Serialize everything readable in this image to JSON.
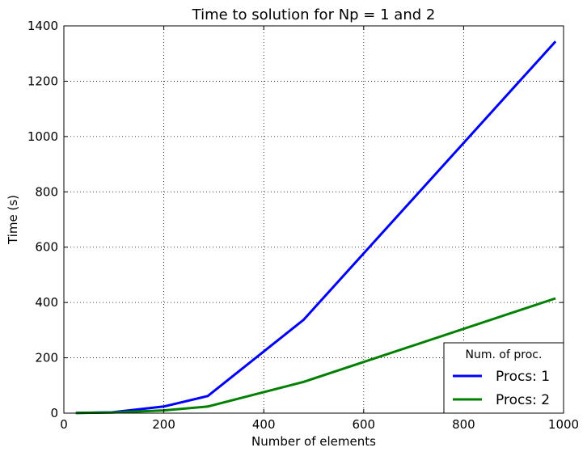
{
  "chart_data": {
    "type": "line",
    "title": "Time to solution for Np =  1 and 2",
    "xlabel": "Number of elements",
    "ylabel": "Time (s)",
    "xlim": [
      0,
      1000
    ],
    "ylim": [
      0,
      1400
    ],
    "xticks": [
      0,
      200,
      400,
      600,
      800,
      1000
    ],
    "yticks": [
      0,
      200,
      400,
      600,
      800,
      1000,
      1200,
      1400
    ],
    "grid": true,
    "legend": {
      "title": "Num. of proc.",
      "placement": "lower-right"
    },
    "series": [
      {
        "name": "Procs: 1",
        "color": "#0000ff",
        "x": [
          24,
          96,
          200,
          288,
          480,
          984
        ],
        "y": [
          1,
          3,
          24,
          62,
          338,
          1344
        ]
      },
      {
        "name": "Procs: 2",
        "color": "#008000",
        "x": [
          24,
          96,
          200,
          288,
          480,
          984
        ],
        "y": [
          0.5,
          2,
          10,
          24,
          113,
          415
        ]
      }
    ]
  }
}
